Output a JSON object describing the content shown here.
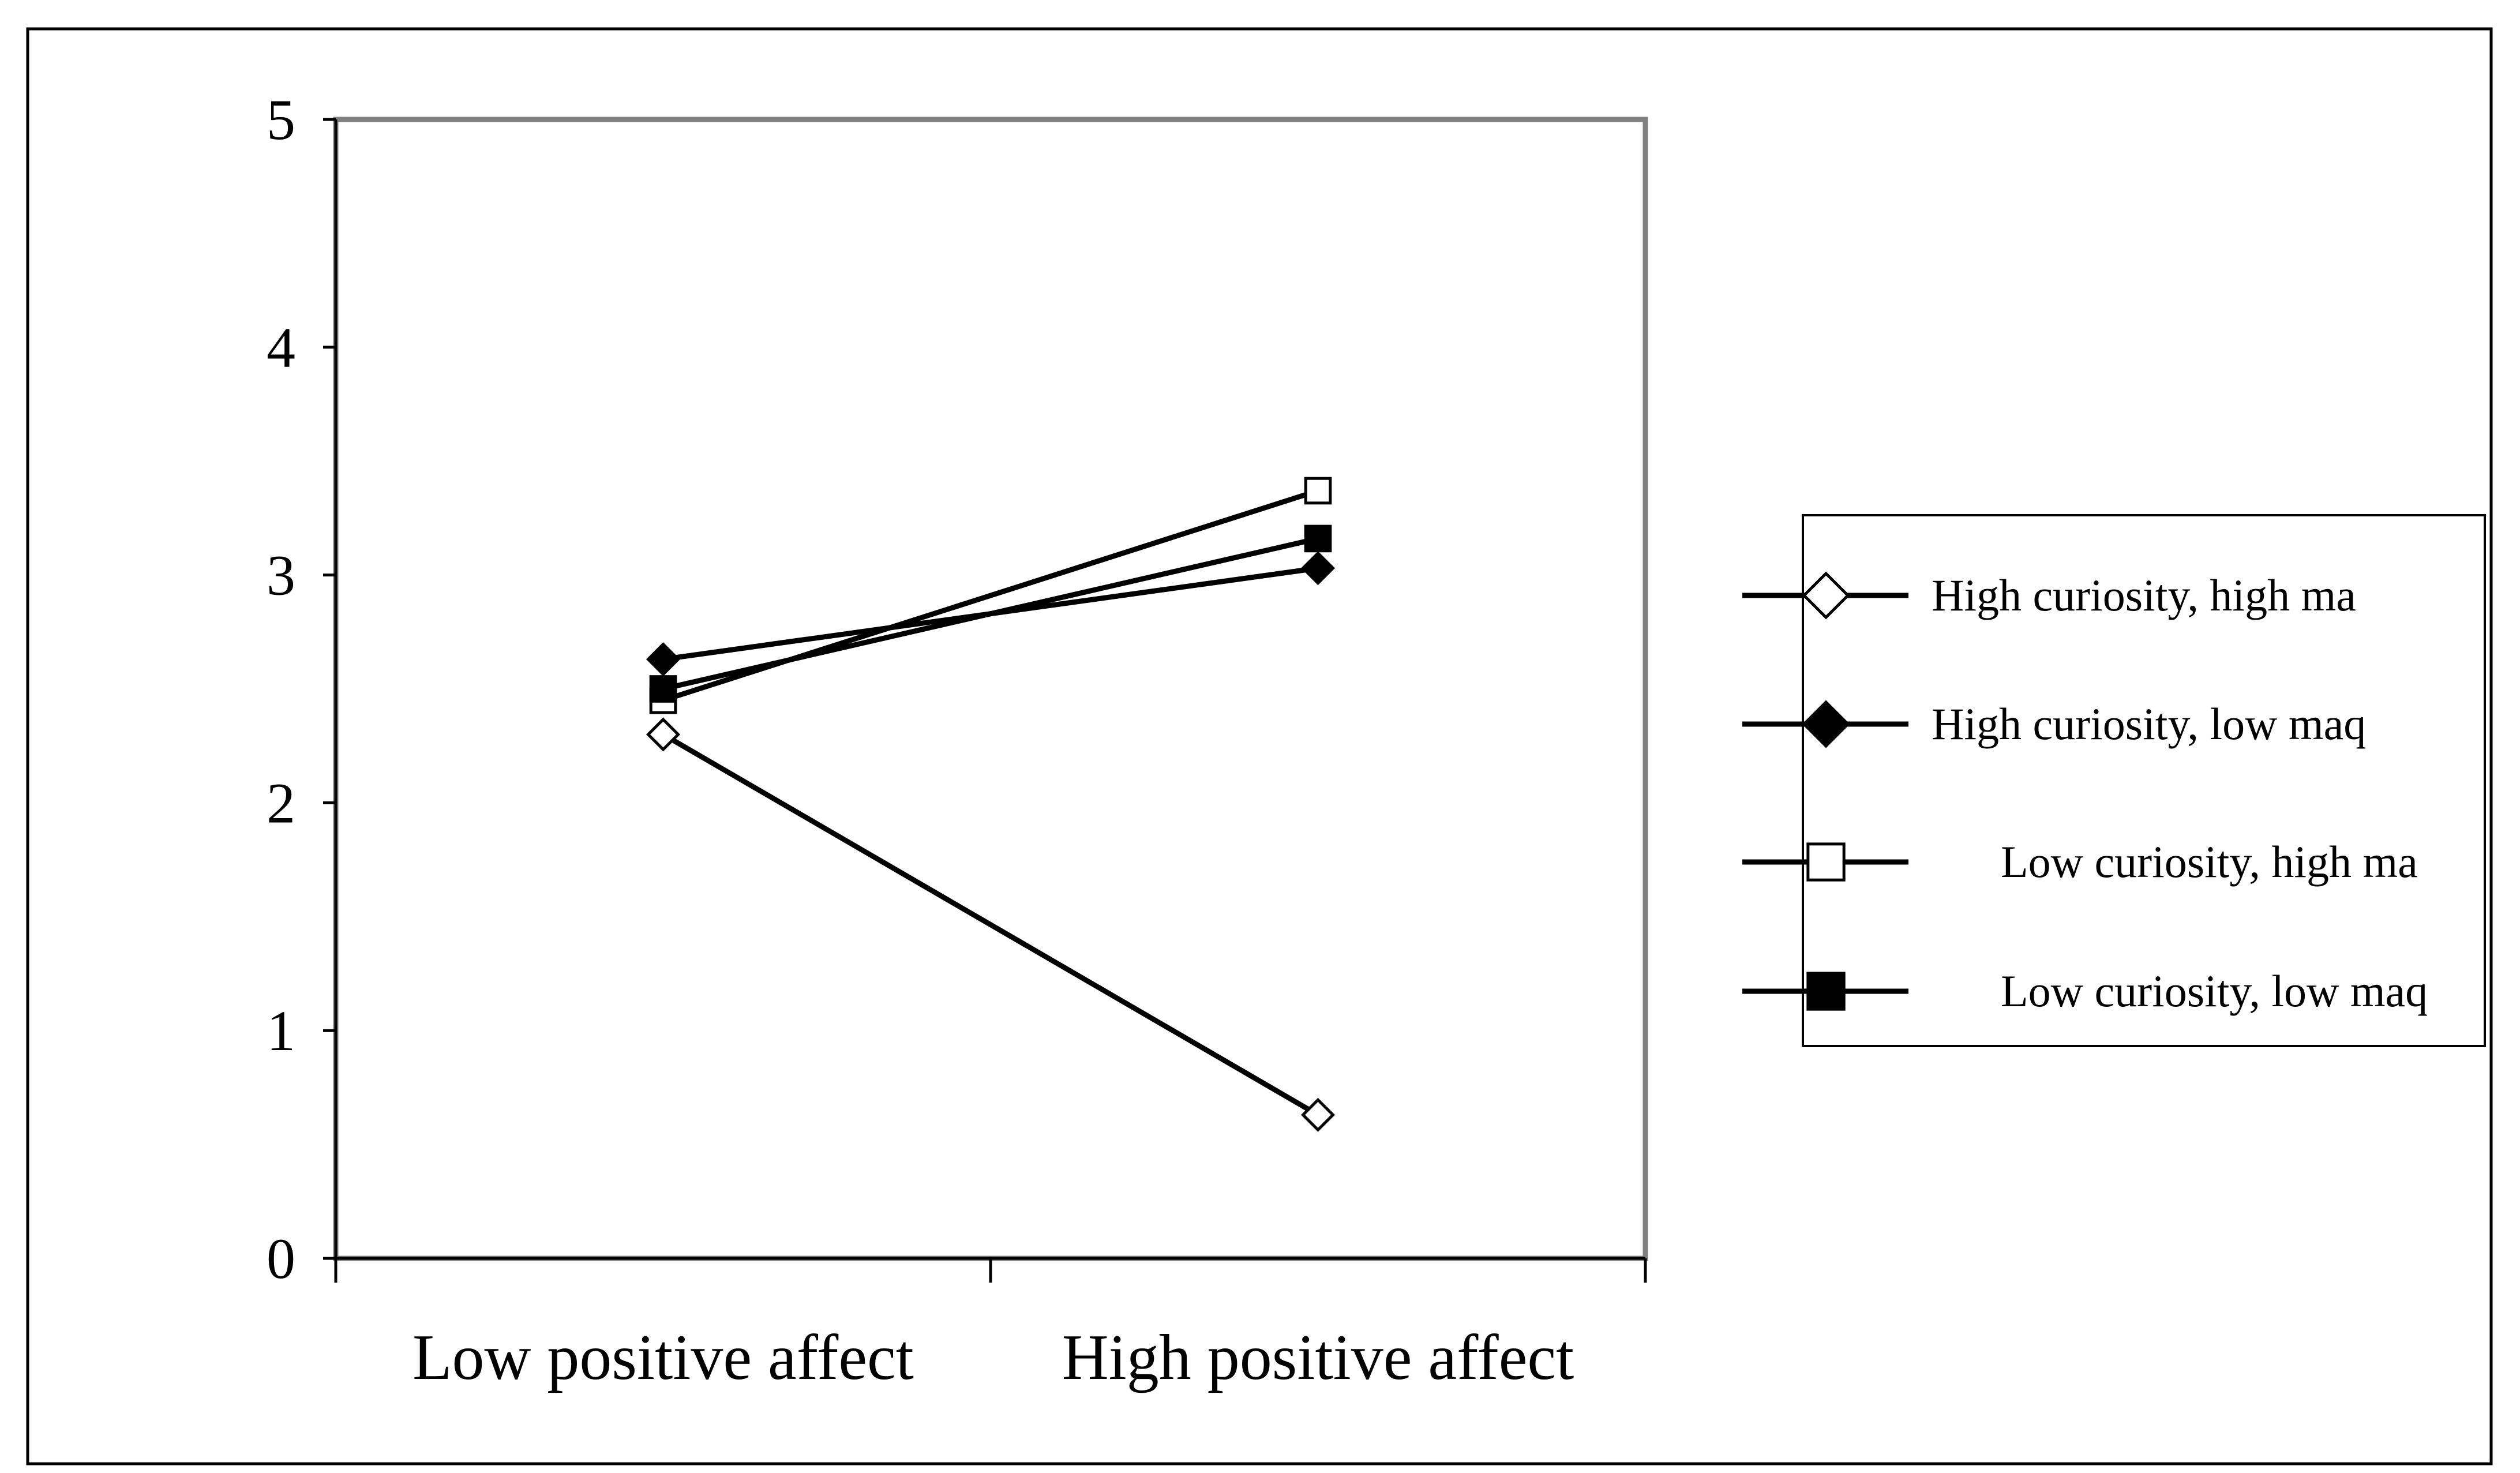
{
  "chart_data": {
    "type": "line",
    "title": "",
    "xlabel": "",
    "ylabel": "",
    "categories": [
      "Low positive affect",
      "High positive affect"
    ],
    "ylim": [
      0,
      5
    ],
    "yticks": [
      "0",
      "1",
      "2",
      "3",
      "4",
      "5"
    ],
    "grid": false,
    "legend_position": "right",
    "series": [
      {
        "name": "High curiosity, high ma",
        "values": [
          2.3,
          0.63
        ],
        "marker": "diamond",
        "filled": false
      },
      {
        "name": "High curiosity, low maq",
        "values": [
          2.63,
          3.03
        ],
        "marker": "diamond",
        "filled": true
      },
      {
        "name": "Low curiosity, high ma",
        "values": [
          2.45,
          3.37
        ],
        "marker": "square",
        "filled": false
      },
      {
        "name": "Low curiosity, low maq",
        "values": [
          2.5,
          3.16
        ],
        "marker": "square",
        "filled": true
      }
    ],
    "colors": {
      "line": "#000000",
      "plot_border": "#808080",
      "legend_border": "#000000"
    }
  }
}
